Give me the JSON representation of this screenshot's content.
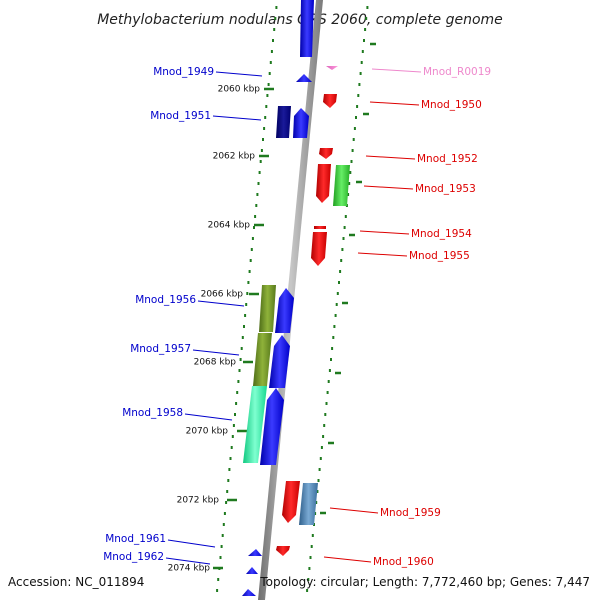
{
  "title": "Methylobacterium nodulans ORS 2060, complete genome",
  "footer": {
    "accession": "Accession: NC_011894",
    "topology": "Topology: circular; Length: 7,772,460 bp; Genes: 7,447"
  },
  "kbp_ticks": [
    "2060 kbp",
    "2062 kbp",
    "2064 kbp",
    "2066 kbp",
    "2068 kbp",
    "2070 kbp",
    "2072 kbp",
    "2074 kbp"
  ],
  "genes": [
    {
      "id": "Mnod_1949",
      "strand": "minus",
      "color": "#0000ee"
    },
    {
      "id": "Mnod_1951",
      "strand": "minus",
      "color": "#0000ee"
    },
    {
      "id": "Mnod_1956",
      "strand": "minus",
      "color": "#0000ee"
    },
    {
      "id": "Mnod_1957",
      "strand": "minus",
      "color": "#0000ee"
    },
    {
      "id": "Mnod_1958",
      "strand": "minus",
      "color": "#0000ee"
    },
    {
      "id": "Mnod_1961",
      "strand": "minus",
      "color": "#0000ee"
    },
    {
      "id": "Mnod_1962",
      "strand": "minus",
      "color": "#0000ee"
    },
    {
      "id": "Mnod_R0019",
      "strand": "plus",
      "color": "#ee88cc"
    },
    {
      "id": "Mnod_1950",
      "strand": "plus",
      "color": "#ee0000"
    },
    {
      "id": "Mnod_1952",
      "strand": "plus",
      "color": "#ee0000"
    },
    {
      "id": "Mnod_1953",
      "strand": "plus",
      "color": "#ee0000"
    },
    {
      "id": "Mnod_1954",
      "strand": "plus",
      "color": "#ee0000"
    },
    {
      "id": "Mnod_1955",
      "strand": "plus",
      "color": "#ee0000"
    },
    {
      "id": "Mnod_1959",
      "strand": "plus",
      "color": "#ee0000"
    },
    {
      "id": "Mnod_1960",
      "strand": "plus",
      "color": "#ee0000"
    }
  ],
  "colors": {
    "backbone": "#8c8c8c",
    "dots": "#1f7a1f",
    "minus_gene": "#0000ee",
    "plus_gene": "#ee0000",
    "rna": "#ee88cc",
    "cog_navy": "#000080",
    "cog_olive": "#6b8e23",
    "cog_aqua": "#00fa9a",
    "cog_green": "#32cd32",
    "cog_steel": "#4682b4"
  }
}
